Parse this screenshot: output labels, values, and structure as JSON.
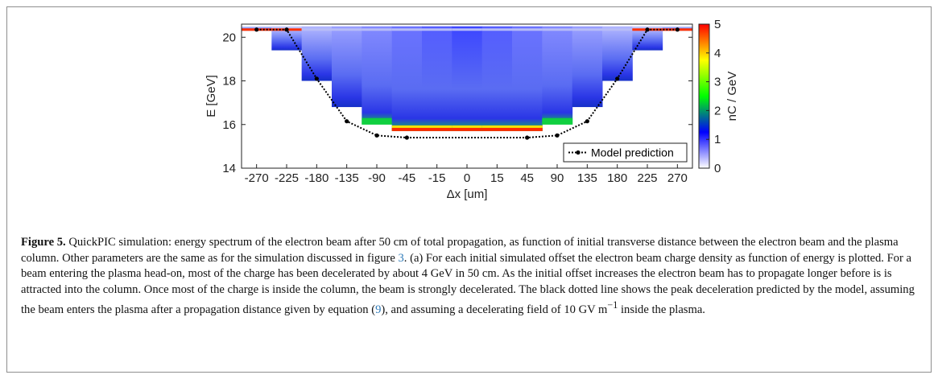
{
  "figure": {
    "caption": {
      "label": "Figure 5.",
      "text_1": " QuickPIC simulation: energy spectrum of the electron beam after 50 cm of total propagation, as function of initial transverse distance between the electron beam and the plasma column. Other parameters are the same as for the simulation discussed in figure ",
      "ref_figure": "3",
      "text_2": ". (a) For each initial simulated offset the electron beam charge density as function of energy is plotted. For a beam entering the plasma head-on, most of the charge has been decelerated by about 4 GeV in 50 cm. As the initial offset increases the electron beam has to propagate longer before is is attracted into the column. Once most of the charge is inside the column, the beam is strongly decelerated. The black dotted line shows the peak deceleration predicted by the model, assuming the beam enters the plasma after a propagation distance given by equation (",
      "ref_equation": "9",
      "text_3": "), and assuming a decelerating field of 10 GV m",
      "superscript": "−1",
      "text_4": " inside the plasma."
    }
  },
  "chart_data": {
    "type": "heatmap",
    "xlabel": "Δx [um]",
    "ylabel": "E [GeV]",
    "colorbar_label": "nC / GeV",
    "colorbar_ticks": [
      0,
      1,
      2,
      3,
      4,
      5
    ],
    "colorbar_range": [
      0,
      5
    ],
    "colormap": [
      "#ffffff",
      "#0000ff",
      "#00ff00",
      "#ffff00",
      "#ff0000"
    ],
    "x_categories": [
      "-270",
      "-225",
      "-180",
      "-135",
      "-90",
      "-45",
      "-15",
      "0",
      "15",
      "45",
      "90",
      "135",
      "180",
      "225",
      "270"
    ],
    "ylim": [
      14,
      20.6
    ],
    "y_ticks": [
      14,
      16,
      18,
      20
    ],
    "columns": [
      {
        "x": "-270",
        "e_min": 20.3
      },
      {
        "x": "-225",
        "e_min": 19.4
      },
      {
        "x": "-180",
        "e_min": 18.0
      },
      {
        "x": "-135",
        "e_min": 16.8
      },
      {
        "x": "-90",
        "e_min": 16.0
      },
      {
        "x": "-45",
        "e_min": 15.7
      },
      {
        "x": "-15",
        "e_min": 15.7
      },
      {
        "x": "0",
        "e_min": 15.7
      },
      {
        "x": "15",
        "e_min": 15.7
      },
      {
        "x": "45",
        "e_min": 15.7
      },
      {
        "x": "90",
        "e_min": 16.0
      },
      {
        "x": "135",
        "e_min": 16.8
      },
      {
        "x": "180",
        "e_min": 18.0
      },
      {
        "x": "225",
        "e_min": 19.4
      },
      {
        "x": "270",
        "e_min": 20.3
      }
    ],
    "series": [
      {
        "name": "Model prediction",
        "x_index": [
          0,
          1,
          2,
          3,
          4,
          5,
          9,
          10,
          11,
          12,
          13,
          14
        ],
        "values": [
          20.35,
          20.35,
          18.1,
          16.15,
          15.5,
          15.4,
          15.4,
          15.5,
          16.15,
          18.1,
          20.35,
          20.35
        ]
      }
    ],
    "legend_position": "bottom-right",
    "grid": false
  }
}
